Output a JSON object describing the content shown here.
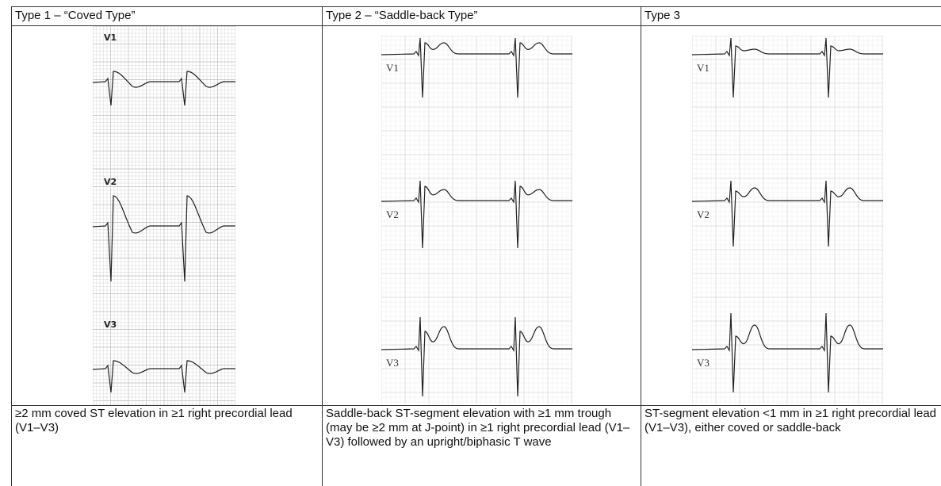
{
  "table": {
    "header": [
      "Type 1 – “Coved Type”",
      "Type 2 – “Saddle-back Type”",
      "Type 3"
    ],
    "images": [
      {
        "leads": [
          "V1",
          "V2",
          "V3"
        ]
      },
      {
        "leads": [
          "V1",
          "V2",
          "V3"
        ]
      },
      {
        "leads": [
          "V1",
          "V2",
          "V3"
        ]
      }
    ],
    "rows": [
      [
        "≥2 mm coved ST elevation in ≥1 right precordial lead (V1–V3)",
        "Saddle-back ST-segment elevation with ≥1 mm trough (may be ≥2 mm at J-point) in ≥1 right precordial lead (V1–V3) followed by an upright/biphasic T wave",
        "ST-segment elevation <1 mm in ≥1 right precordial lead (V1–V3), either coved or saddle-back"
      ]
    ]
  }
}
